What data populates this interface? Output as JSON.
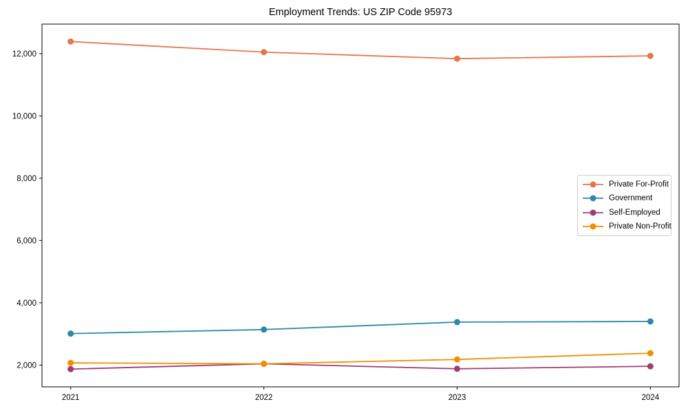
{
  "chart_data": {
    "type": "line",
    "title": "Employment Trends: US ZIP Code 95973",
    "xlabel": "",
    "ylabel": "",
    "x": [
      2021,
      2022,
      2023,
      2024
    ],
    "x_tick_labels": [
      "2021",
      "2022",
      "2023",
      "2024"
    ],
    "yticks": [
      2000,
      4000,
      6000,
      8000,
      10000,
      12000
    ],
    "ytick_labels": [
      "2,000",
      "4,000",
      "6,000",
      "8,000",
      "10,000",
      "12,000"
    ],
    "ylim": [
      1300,
      12950
    ],
    "grid": false,
    "legend_position": "center right",
    "marker": "circle",
    "axis_color": "#000000",
    "legend_border_color": "#cccccc",
    "series": [
      {
        "name": "Private For-Profit",
        "color": "#E8764B",
        "values": [
          12390,
          12050,
          11840,
          11930
        ]
      },
      {
        "name": "Government",
        "color": "#2E86AB",
        "values": [
          3010,
          3140,
          3380,
          3400
        ]
      },
      {
        "name": "Self-Employed",
        "color": "#A23B72",
        "values": [
          1870,
          2040,
          1880,
          1960
        ]
      },
      {
        "name": "Private Non-Profit",
        "color": "#F18F01",
        "values": [
          2070,
          2040,
          2180,
          2380
        ]
      }
    ]
  }
}
